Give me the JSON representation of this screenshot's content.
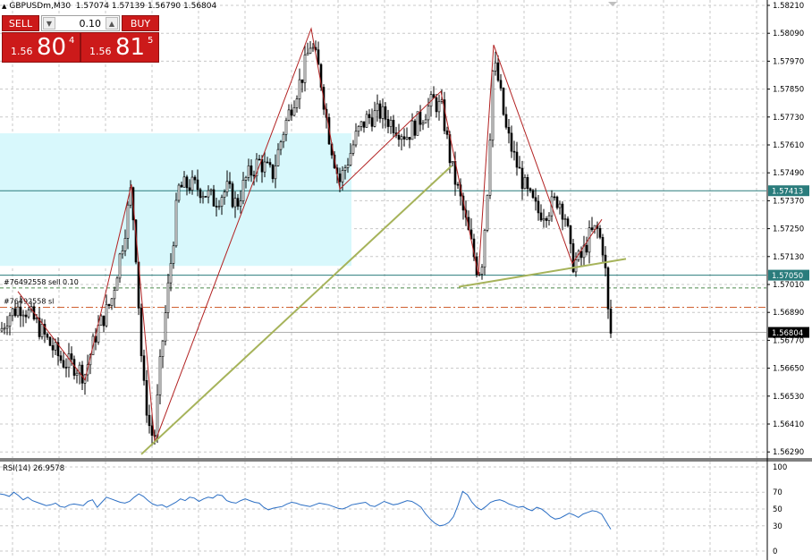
{
  "window": {
    "title": "GBPUSDm,M30",
    "ohlc": "1.57074 1.57139 1.56790 1.56804"
  },
  "trade_panel": {
    "sell_label": "SELL",
    "buy_label": "BUY",
    "lot_value": "0.10",
    "minus_symbol": "▼",
    "plus_symbol": "▲",
    "sell_price": {
      "prefix": "1.56",
      "big": "80",
      "sup": "4"
    },
    "buy_price": {
      "prefix": "1.56",
      "big": "81",
      "sup": "5"
    }
  },
  "price_axis": {
    "ticks": [
      "1.58210",
      "1.58090",
      "1.57970",
      "1.57850",
      "1.57730",
      "1.57610",
      "1.57490",
      "1.57370",
      "1.57250",
      "1.57130",
      "1.57010",
      "1.56890",
      "1.56770",
      "1.56650",
      "1.56530",
      "1.56410",
      "1.56290"
    ]
  },
  "horizontal_lines": [
    {
      "price": 1.57413,
      "label": "1.57413",
      "style": "solid",
      "color": "#2a7c7c"
    },
    {
      "price": 1.5705,
      "label": "1.57050",
      "style": "solid",
      "color": "#2a7c7c"
    },
    {
      "price": 1.56804,
      "label": "1.56804",
      "style": "current",
      "color": "#000000"
    },
    {
      "price": 1.56995,
      "label": "#76492558 sell 0.10",
      "style": "dash-green",
      "color": "#4d8a4d"
    },
    {
      "price": 1.56912,
      "label": "#76492558 sl",
      "style": "dash-orange",
      "color": "#d06030"
    }
  ],
  "rsi": {
    "label": "RSI(14) 26.9578",
    "levels": [
      "100",
      "70",
      "50",
      "30",
      "0"
    ]
  },
  "colors": {
    "zone": "#d8f8fc",
    "zigzag": "#b22222",
    "trendline": "#a6b35a",
    "rsi_line": "#2c6fc4",
    "candle": "#000000",
    "grid": "#c8c8c8"
  },
  "chart_data": {
    "type": "candlestick",
    "symbol": "GBPUSDm",
    "timeframe": "M30",
    "ylim": [
      1.5625,
      1.5827
    ],
    "rsi_series": [
      68,
      67,
      65,
      70,
      66,
      61,
      64,
      60,
      58,
      56,
      54,
      55,
      57,
      53,
      52,
      55,
      56,
      55,
      54,
      59,
      61,
      52,
      58,
      64,
      62,
      60,
      58,
      57,
      59,
      64,
      68,
      65,
      60,
      56,
      54,
      55,
      52,
      55,
      58,
      62,
      60,
      64,
      63,
      59,
      62,
      64,
      63,
      67,
      66,
      60,
      58,
      57,
      60,
      62,
      60,
      58,
      57,
      52,
      49,
      51,
      52,
      53,
      56,
      58,
      57,
      55,
      54,
      53,
      55,
      57,
      56,
      55,
      53,
      51,
      50,
      52,
      55,
      56,
      57,
      58,
      54,
      53,
      56,
      59,
      57,
      55,
      56,
      58,
      60,
      59,
      56,
      52,
      44,
      38,
      33,
      30,
      31,
      34,
      41,
      55,
      71,
      67,
      58,
      52,
      49,
      53,
      58,
      60,
      61,
      59,
      56,
      54,
      52,
      53,
      50,
      48,
      52,
      50,
      46,
      41,
      38,
      39,
      42,
      45,
      43,
      40,
      44,
      46,
      48,
      47,
      44,
      35,
      26
    ]
  }
}
